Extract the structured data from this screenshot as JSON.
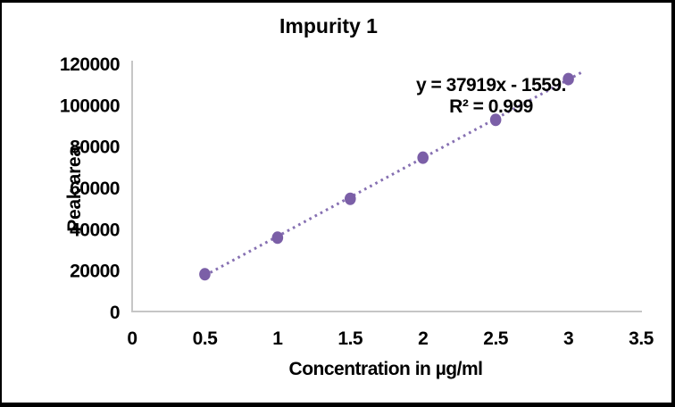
{
  "window": {
    "background": "#ffffff",
    "frame_border_color": "#000000"
  },
  "chart_data": {
    "type": "scatter",
    "title": "Impurity 1",
    "xlabel": "Concentration in µg/ml",
    "ylabel": "Peak area",
    "x": [
      0.5,
      1,
      1.5,
      2,
      2.5,
      3
    ],
    "y": [
      18000,
      35700,
      54500,
      74400,
      92700,
      112400
    ],
    "xlim": [
      0,
      3.5
    ],
    "ylim": [
      0,
      120000
    ],
    "x_tick_labels": [
      "0",
      "0.5",
      "1",
      "1.5",
      "2",
      "2.5",
      "3",
      "3.5"
    ],
    "y_tick_labels": [
      "0",
      "20000",
      "40000",
      "60000",
      "80000",
      "100000",
      "120000"
    ],
    "grid": false,
    "legend": "none",
    "marker": {
      "shape": "circle",
      "color": "#7B5FA7"
    },
    "trendline": {
      "type": "linear",
      "slope": 37919,
      "intercept": -1559,
      "x_start": 0.5,
      "x_end": 3.1,
      "style": "dotted",
      "color": "#8670B2",
      "equation_label": "y = 37919x - 1559.",
      "r2_label": "R² = 0.999"
    },
    "axis_line_color": "#C6C6C6",
    "text_color": "#000000"
  }
}
